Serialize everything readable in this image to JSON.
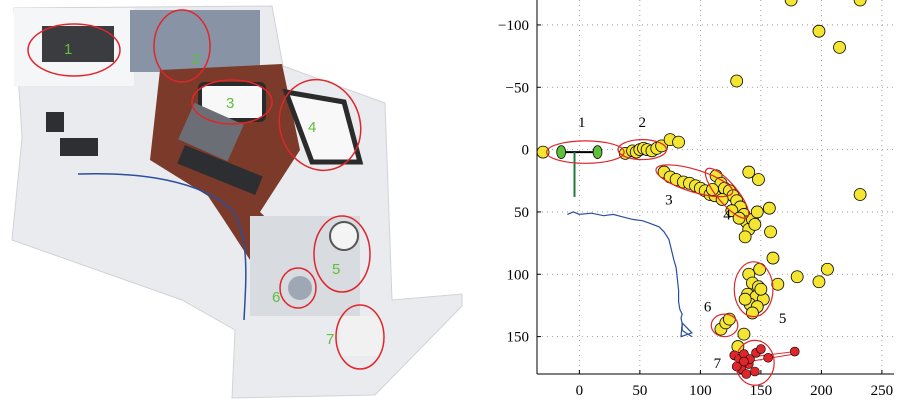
{
  "photo": {
    "labels": [
      "1",
      "2",
      "3",
      "4",
      "5",
      "6",
      "7"
    ],
    "colors": {
      "ellipse": "#e0262a",
      "label": "#5fbf3a",
      "desk": "#7b3a2a",
      "floor": "#eef0f2",
      "trajectory": "#2a4fa0"
    }
  },
  "chart_data": {
    "type": "scatter",
    "xlim": [
      -35,
      260
    ],
    "ylim": [
      -120,
      180
    ],
    "y_inverted": true,
    "grid": true,
    "x_ticks": [
      0,
      50,
      100,
      150,
      200,
      250
    ],
    "y_ticks": [
      -100,
      -50,
      0,
      50,
      100,
      150
    ],
    "x_tick_labels": [
      "0",
      "50",
      "100",
      "150",
      "200",
      "250"
    ],
    "y_tick_labels": [
      "−100",
      "−50",
      "0",
      "50",
      "100",
      "150"
    ],
    "regions": [
      {
        "label": "1",
        "center": [
          5,
          2
        ],
        "rx": 32,
        "ry": 9,
        "angle": 0,
        "label_pos": [
          2,
          -22
        ]
      },
      {
        "label": "2",
        "center": [
          52,
          0
        ],
        "rx": 20,
        "ry": 8,
        "angle": 0,
        "label_pos": [
          52,
          -22
        ]
      },
      {
        "label": "3",
        "center": [
          95,
          25
        ],
        "rx": 33,
        "ry": 9,
        "angle": 17,
        "label_pos": [
          74,
          40
        ]
      },
      {
        "label": "4",
        "center": [
          122,
          35
        ],
        "rx": 26,
        "ry": 8,
        "angle": 50,
        "label_pos": [
          122,
          52
        ]
      },
      {
        "label": "5",
        "center": [
          144,
          112
        ],
        "rx": 16,
        "ry": 22,
        "angle": 0,
        "label_pos": [
          168,
          135
        ]
      },
      {
        "label": "6",
        "center": [
          120,
          141
        ],
        "rx": 11,
        "ry": 9,
        "angle": 0,
        "label_pos": [
          106,
          126
        ]
      },
      {
        "label": "7",
        "center": [
          145,
          171
        ],
        "rx": 16,
        "ry": 18,
        "angle": 0,
        "label_pos": [
          114,
          171
        ]
      }
    ],
    "green_points": [
      [
        -15,
        2
      ],
      [
        15,
        2
      ]
    ],
    "yellow_points": [
      [
        -30,
        2
      ],
      [
        38,
        3
      ],
      [
        44,
        1
      ],
      [
        47,
        2
      ],
      [
        50,
        0
      ],
      [
        53,
        -1
      ],
      [
        56,
        0
      ],
      [
        60,
        1
      ],
      [
        64,
        -1
      ],
      [
        68,
        -3
      ],
      [
        75,
        -8
      ],
      [
        82,
        -6
      ],
      [
        70,
        18
      ],
      [
        75,
        22
      ],
      [
        80,
        24
      ],
      [
        86,
        26
      ],
      [
        91,
        27
      ],
      [
        96,
        29
      ],
      [
        100,
        31
      ],
      [
        104,
        33
      ],
      [
        108,
        36
      ],
      [
        112,
        37
      ],
      [
        113,
        21
      ],
      [
        117,
        27
      ],
      [
        120,
        31
      ],
      [
        124,
        33
      ],
      [
        127,
        37
      ],
      [
        130,
        41
      ],
      [
        133,
        46
      ],
      [
        136,
        52
      ],
      [
        138,
        58
      ],
      [
        140,
        64
      ],
      [
        110,
        32
      ],
      [
        118,
        40
      ],
      [
        126,
        49
      ],
      [
        132,
        55
      ],
      [
        143,
        56
      ],
      [
        147,
        50
      ],
      [
        157,
        47
      ],
      [
        158,
        66
      ],
      [
        137,
        70
      ],
      [
        145,
        60
      ],
      [
        140,
        18
      ],
      [
        148,
        24
      ],
      [
        130,
        -55
      ],
      [
        175,
        -120
      ],
      [
        215,
        -82
      ],
      [
        232,
        -120
      ],
      [
        232,
        36
      ],
      [
        198,
        -95
      ],
      [
        149,
        96
      ],
      [
        140,
        100
      ],
      [
        143,
        107
      ],
      [
        148,
        110
      ],
      [
        139,
        116
      ],
      [
        146,
        118
      ],
      [
        152,
        120
      ],
      [
        141,
        124
      ],
      [
        147,
        126
      ],
      [
        143,
        131
      ],
      [
        150,
        112
      ],
      [
        137,
        120
      ],
      [
        160,
        87
      ],
      [
        164,
        108
      ],
      [
        180,
        102
      ],
      [
        198,
        106
      ],
      [
        205,
        96
      ],
      [
        117,
        144
      ],
      [
        121,
        139
      ],
      [
        124,
        136
      ],
      [
        131,
        158
      ],
      [
        136,
        148
      ]
    ],
    "red_points": [
      [
        128,
        165
      ],
      [
        132,
        168
      ],
      [
        136,
        164
      ],
      [
        140,
        172
      ],
      [
        134,
        176
      ],
      [
        141,
        168
      ],
      [
        146,
        163
      ],
      [
        150,
        160
      ],
      [
        138,
        180
      ],
      [
        145,
        178
      ],
      [
        156,
        167
      ],
      [
        178,
        162
      ],
      [
        130,
        174
      ],
      [
        136,
        170
      ]
    ],
    "trajectory": [
      [
        -10,
        52
      ],
      [
        -5,
        50
      ],
      [
        0,
        52
      ],
      [
        10,
        51
      ],
      [
        20,
        53
      ],
      [
        28,
        52
      ],
      [
        36,
        54
      ],
      [
        44,
        56
      ],
      [
        52,
        57
      ],
      [
        58,
        59
      ],
      [
        66,
        62
      ],
      [
        70,
        66
      ],
      [
        74,
        72
      ],
      [
        76,
        80
      ],
      [
        78,
        88
      ],
      [
        80,
        95
      ],
      [
        81,
        104
      ],
      [
        82,
        113
      ],
      [
        82,
        122
      ],
      [
        83,
        128
      ],
      [
        85,
        132
      ],
      [
        84,
        135
      ],
      [
        85,
        140
      ],
      [
        85,
        145
      ],
      [
        88,
        147
      ],
      [
        93,
        150
      ]
    ],
    "trajectory_arrow": [
      [
        85,
        139
      ],
      [
        93,
        147
      ],
      [
        84,
        150
      ]
    ]
  }
}
